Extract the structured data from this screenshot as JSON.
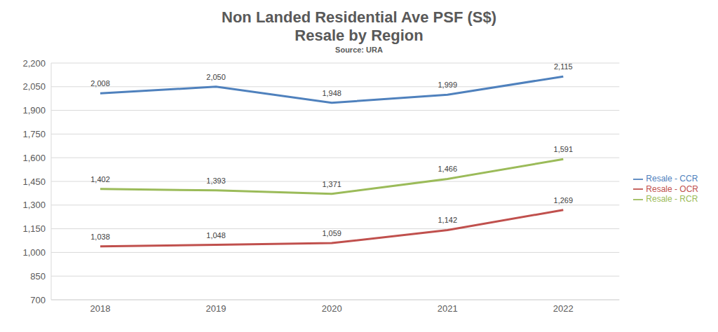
{
  "chart_data": {
    "type": "line",
    "title": "Non Landed Residential Ave PSF (S$)",
    "subtitle": "Resale by Region",
    "annotations": [
      "Source: URA"
    ],
    "categories": [
      "2018",
      "2019",
      "2020",
      "2021",
      "2022"
    ],
    "series": [
      {
        "name": "Resale - CCR",
        "color": "#4f81bd",
        "values": [
          2008,
          2050,
          1948,
          1999,
          2115
        ],
        "value_labels": [
          "2,008",
          "2,050",
          "1,948",
          "1,999",
          "2,115"
        ]
      },
      {
        "name": "Resale - OCR",
        "color": "#c0504d",
        "values": [
          1038,
          1048,
          1059,
          1142,
          1269
        ],
        "value_labels": [
          "1,038",
          "1,048",
          "1,059",
          "1,142",
          "1,269"
        ]
      },
      {
        "name": "Resale - RCR",
        "color": "#9bbb59",
        "values": [
          1402,
          1393,
          1371,
          1466,
          1591
        ],
        "value_labels": [
          "1,402",
          "1,393",
          "1,371",
          "1,466",
          "1,591"
        ]
      }
    ],
    "ylim": [
      700,
      2200
    ],
    "yticks": [
      700,
      850,
      {
        "value": 1000,
        "label": "1,000"
      },
      {
        "value": 1150,
        "label": "1,150"
      },
      {
        "value": 1300,
        "label": "1,300"
      },
      {
        "value": 1450,
        "label": "1,450"
      },
      {
        "value": 1600,
        "label": "1,600"
      },
      {
        "value": 1750,
        "label": "1,750"
      },
      {
        "value": 1900,
        "label": "1,900"
      },
      {
        "value": 2050,
        "label": "2,050"
      },
      {
        "value": 2200,
        "label": "2,200"
      }
    ],
    "grid": true,
    "legend": "right",
    "data_labels": true,
    "marker": "none"
  }
}
